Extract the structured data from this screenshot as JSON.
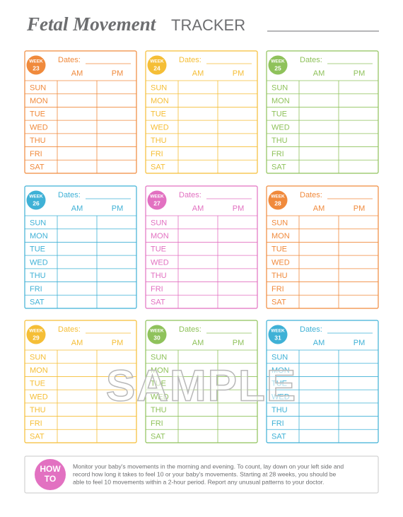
{
  "header": {
    "title_script": "Fetal Movement",
    "title_caps": "TRACKER"
  },
  "week_label": "WEEK",
  "dates_label": "Dates:",
  "columns": [
    "AM",
    "PM"
  ],
  "days": [
    "SUN",
    "MON",
    "TUE",
    "WED",
    "THU",
    "FRI",
    "SAT"
  ],
  "cards": [
    {
      "week": "23",
      "color": "#f08a3c"
    },
    {
      "week": "24",
      "color": "#f5be36"
    },
    {
      "week": "25",
      "color": "#8fc25b"
    },
    {
      "week": "26",
      "color": "#3fb1d6"
    },
    {
      "week": "27",
      "color": "#e271c1"
    },
    {
      "week": "28",
      "color": "#f08a3c"
    },
    {
      "week": "29",
      "color": "#f5be36"
    },
    {
      "week": "30",
      "color": "#8fc25b"
    },
    {
      "week": "31",
      "color": "#3fb1d6"
    }
  ],
  "watermark": "SAMPLE",
  "how_to": {
    "badge": [
      "HOW",
      "TO"
    ],
    "color": "#e271c1",
    "lines": [
      "Monitor your baby's movements in the morning and evening. To count, lay down on your left side and",
      "record how long it takes to feel 10 or your baby's movements. Starting at 28 weeks, you should be",
      "able to feel 10 movements within a 2-hour period. Report any unusual patterns to your doctor."
    ]
  }
}
